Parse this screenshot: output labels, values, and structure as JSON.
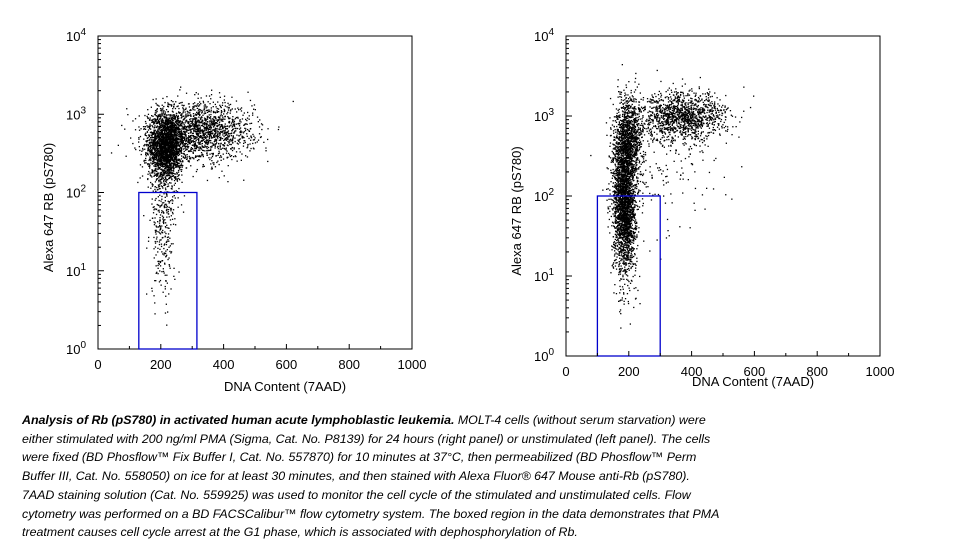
{
  "chart_data": [
    {
      "type": "scatter",
      "panel": "left",
      "xlabel": "DNA Content (7AAD)",
      "ylabel": "Alexa 647 RB (pS780)",
      "xlim": [
        0,
        1000
      ],
      "ylim": [
        1,
        10000
      ],
      "yscale": "log",
      "xticks": [
        "0",
        "200",
        "400",
        "600",
        "800",
        "1000"
      ],
      "yticks": [
        {
          "base": "10",
          "exp": "0"
        },
        {
          "base": "10",
          "exp": "1"
        },
        {
          "base": "10",
          "exp": "2"
        },
        {
          "base": "10",
          "exp": "3"
        },
        {
          "base": "10",
          "exp": "4"
        }
      ],
      "gate": {
        "x": [
          130,
          315
        ],
        "y": [
          1,
          100
        ],
        "color": "#0000cc"
      },
      "point_color": "#000000",
      "populations": [
        {
          "x_center": 215,
          "x_spread": 28,
          "y_center_log": 2.6,
          "y_spread_log": 0.22,
          "count": 2300
        },
        {
          "x_center": 330,
          "x_spread": 80,
          "y_center_log": 2.78,
          "y_spread_log": 0.18,
          "count": 1600
        },
        {
          "x_center": 205,
          "x_spread": 20,
          "y_center_log": 1.6,
          "y_spread_log": 0.45,
          "count": 320
        }
      ]
    },
    {
      "type": "scatter",
      "panel": "right",
      "xlabel": "DNA Content (7AAD)",
      "ylabel": "Alexa 647 RB (pS780)",
      "xlim": [
        0,
        1000
      ],
      "ylim": [
        1,
        10000
      ],
      "yscale": "log",
      "xticks": [
        "0",
        "200",
        "400",
        "600",
        "800",
        "1000"
      ],
      "yticks": [
        {
          "base": "10",
          "exp": "0"
        },
        {
          "base": "10",
          "exp": "1"
        },
        {
          "base": "10",
          "exp": "2"
        },
        {
          "base": "10",
          "exp": "3"
        },
        {
          "base": "10",
          "exp": "4"
        }
      ],
      "gate": {
        "x": [
          100,
          300
        ],
        "y": [
          1,
          100
        ],
        "color": "#0000cc"
      },
      "point_color": "#000000",
      "populations": [
        {
          "x_center": 185,
          "x_spread": 18,
          "y_center_log": 1.95,
          "y_spread_log": 0.45,
          "count": 2600
        },
        {
          "x_center": 200,
          "x_spread": 22,
          "y_center_log": 2.75,
          "y_spread_log": 0.25,
          "count": 900
        },
        {
          "x_center": 370,
          "x_spread": 70,
          "y_center_log": 3.0,
          "y_spread_log": 0.15,
          "count": 1300
        },
        {
          "x_center": 300,
          "x_spread": 90,
          "y_center_log": 2.3,
          "y_spread_log": 0.35,
          "count": 150
        }
      ]
    }
  ],
  "caption": {
    "title": "Analysis of Rb (pS780) in activated human acute lymphoblastic leukemia.",
    "body": " MOLT-4 cells (without serum starvation) were\neither stimulated with 200 ng/ml PMA (Sigma, Cat. No. P8139) for 24 hours (right panel) or unstimulated (left panel).  The cells\nwere fixed (BD Phosflow™ Fix Buffer I, Cat. No. 557870) for 10 minutes at 37°C, then permeabilized (BD Phosflow™ Perm\nBuffer III, Cat. No. 558050) on ice for at least 30 minutes, and then stained with Alexa Fluor® 647 Mouse anti-Rb (pS780).\n7AAD staining solution (Cat. No. 559925) was used to monitor the cell cycle of the stimulated and unstimulated cells.  Flow\ncytometry was performed on a BD FACSCalibur™ flow cytometry system.  The boxed region in the data demonstrates that PMA\ntreatment causes cell cycle arrest at the G1 phase, which is associated with dephosphorylation of Rb."
  }
}
